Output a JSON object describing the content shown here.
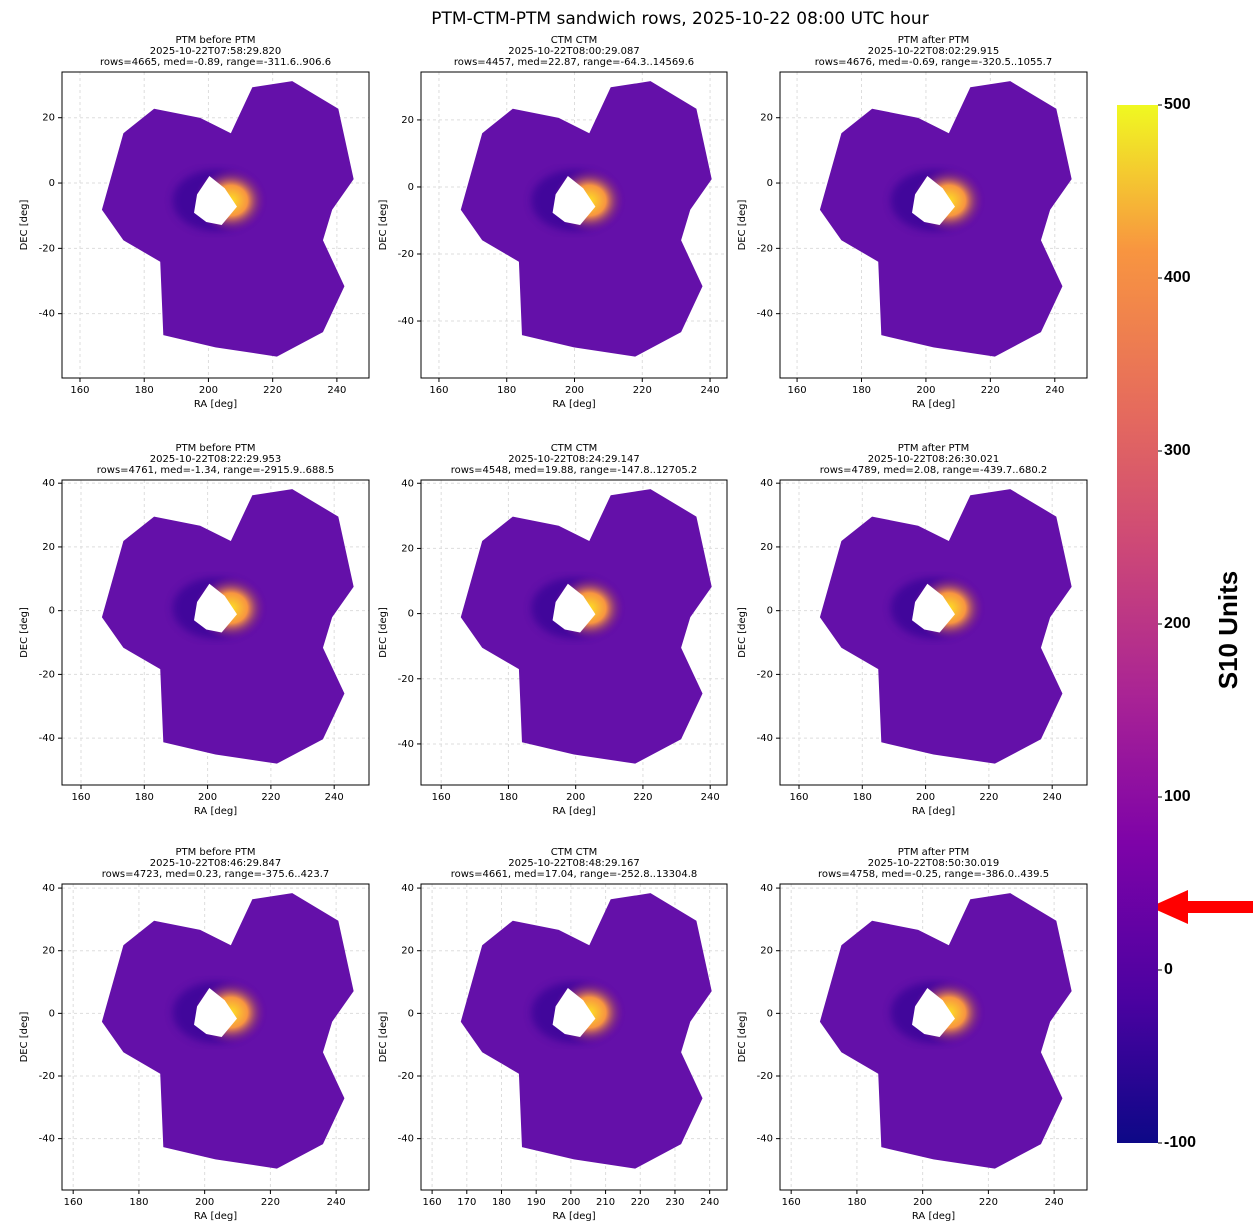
{
  "title": "PTM-CTM-PTM sandwich rows, 2025-10-22 08:00 UTC hour",
  "colorbar": {
    "label": "S10 Units",
    "lim": [
      -100,
      500
    ],
    "ticks": [
      -100,
      0,
      100,
      200,
      300,
      400,
      500
    ],
    "colormap": "plasma"
  },
  "chart_data": [
    {
      "type": "heatmap",
      "title": "PTM before PTM",
      "timestamp": "2025-10-22T07:58:29.820",
      "stats": "rows=4665, med=-0.89, range=-311.6..906.6",
      "x_label": "RA [deg]",
      "y_label": "DEC [deg]",
      "xlim": [
        154.4,
        250
      ],
      "ylim": [
        -59.7,
        34
      ],
      "xticks": [
        160,
        180,
        200,
        220,
        240
      ],
      "yticks": [
        -40,
        -20,
        0,
        20
      ],
      "grid": true
    },
    {
      "type": "heatmap",
      "title": "CTM CTM",
      "timestamp": "2025-10-22T08:00:29.087",
      "stats": "rows=4457, med=22.87, range=-64.3..14569.6",
      "x_label": "RA [deg]",
      "y_label": "DEC [deg]",
      "xlim": [
        154.7,
        245
      ],
      "ylim": [
        -57,
        34.3
      ],
      "xticks": [
        160,
        180,
        200,
        220,
        240
      ],
      "yticks": [
        -40,
        -20,
        0,
        20
      ],
      "grid": true
    },
    {
      "type": "heatmap",
      "title": "PTM after PTM",
      "timestamp": "2025-10-22T08:02:29.915",
      "stats": "rows=4676, med=-0.69, range=-320.5..1055.7",
      "x_label": "RA [deg]",
      "y_label": "DEC [deg]",
      "xlim": [
        154.7,
        250
      ],
      "ylim": [
        -59.7,
        34
      ],
      "xticks": [
        160,
        180,
        200,
        220,
        240
      ],
      "yticks": [
        -40,
        -20,
        0,
        20
      ],
      "grid": true
    },
    {
      "type": "heatmap",
      "title": "PTM before PTM",
      "timestamp": "2025-10-22T08:22:29.953",
      "stats": "rows=4761, med=-1.34, range=-2915.9..688.5",
      "x_label": "RA [deg]",
      "y_label": "DEC [deg]",
      "xlim": [
        154,
        251
      ],
      "ylim": [
        -54.7,
        41
      ],
      "xticks": [
        160,
        180,
        200,
        220,
        240
      ],
      "yticks": [
        -40,
        -20,
        0,
        20,
        40
      ],
      "grid": true
    },
    {
      "type": "heatmap",
      "title": "CTM CTM",
      "timestamp": "2025-10-22T08:24:29.147",
      "stats": "rows=4548, med=19.88, range=-147.8..12705.2",
      "x_label": "RA [deg]",
      "y_label": "DEC [deg]",
      "xlim": [
        154,
        245
      ],
      "ylim": [
        -52.6,
        41
      ],
      "xticks": [
        160,
        180,
        200,
        220,
        240
      ],
      "yticks": [
        -40,
        -20,
        0,
        20,
        40
      ],
      "grid": true
    },
    {
      "type": "heatmap",
      "title": "PTM after PTM",
      "timestamp": "2025-10-22T08:26:30.021",
      "stats": "rows=4789, med=2.08, range=-439.7..680.2",
      "x_label": "RA [deg]",
      "y_label": "DEC [deg]",
      "xlim": [
        154,
        251
      ],
      "ylim": [
        -54.7,
        41
      ],
      "xticks": [
        160,
        180,
        200,
        220,
        240
      ],
      "yticks": [
        -40,
        -20,
        0,
        20,
        40
      ],
      "grid": true
    },
    {
      "type": "heatmap",
      "title": "PTM before PTM",
      "timestamp": "2025-10-22T08:46:29.847",
      "stats": "rows=4723, med=0.23, range=-375.6..423.7",
      "x_label": "RA [deg]",
      "y_label": "DEC [deg]",
      "xlim": [
        156.6,
        250
      ],
      "ylim": [
        -56.4,
        41.3
      ],
      "xticks": [
        160,
        180,
        200,
        220,
        240
      ],
      "yticks": [
        -40,
        -20,
        0,
        20,
        40
      ],
      "grid": true
    },
    {
      "type": "heatmap",
      "title": "CTM CTM",
      "timestamp": "2025-10-22T08:48:29.167",
      "stats": "rows=4661, med=17.04, range=-252.8..13304.8",
      "x_label": "RA [deg]",
      "y_label": "DEC [deg]",
      "xlim": [
        156.8,
        245
      ],
      "ylim": [
        -56.4,
        41.3
      ],
      "xticks": [
        160,
        170,
        180,
        190,
        200,
        210,
        220,
        230,
        240
      ],
      "yticks": [
        -40,
        -20,
        0,
        20,
        40
      ],
      "grid": true
    },
    {
      "type": "heatmap",
      "title": "PTM after PTM",
      "timestamp": "2025-10-22T08:50:30.019",
      "stats": "rows=4758, med=-0.25, range=-386.0..439.5",
      "x_label": "RA [deg]",
      "y_label": "DEC [deg]",
      "xlim": [
        156.6,
        250
      ],
      "ylim": [
        -56.4,
        41.3
      ],
      "xticks": [
        160,
        180,
        200,
        220,
        240
      ],
      "yticks": [
        -40,
        -20,
        0,
        20,
        40
      ],
      "grid": true
    }
  ]
}
